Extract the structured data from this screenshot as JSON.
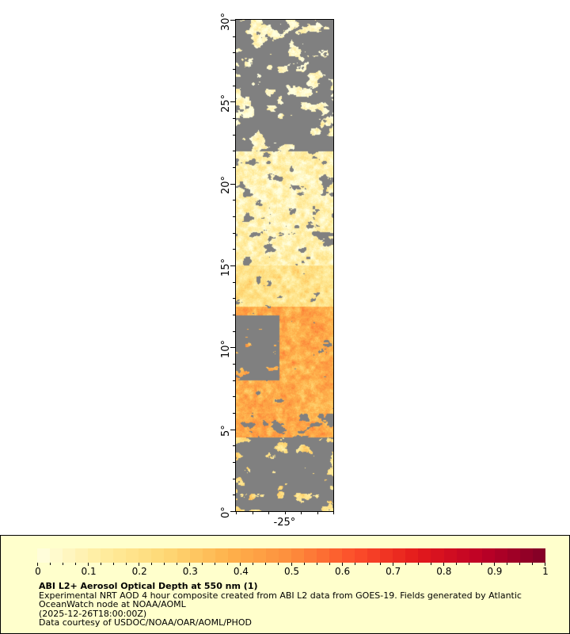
{
  "chart_data": {
    "type": "heatmap",
    "title": "ABI L2+ Aerosol Optical Depth at 550 nm (1)",
    "description_lines": [
      "Experimental NRT AOD 4 hour composite created from ABI L2 data from GOES-19. Fields generated by Atlantic",
      "OceanWatch node at NOAA/AOML",
      "(2025-12-26T18:00:00Z)",
      "Data courtesy of USDOC/NOAA/OAR/AOML/PHOD"
    ],
    "y_axis": {
      "range": [
        0,
        30
      ],
      "tick_labels": [
        "0°",
        "5°",
        "10°",
        "15°",
        "20°",
        "25°",
        "30°"
      ],
      "minor_step": 1
    },
    "x_axis": {
      "range": [
        -28,
        -22
      ],
      "tick_labels": [
        "-25°"
      ],
      "minor_step": 1
    },
    "colorbar": {
      "range": [
        0,
        1
      ],
      "tick_labels": [
        "0",
        "0.1",
        "0.2",
        "0.3",
        "0.4",
        "0.5",
        "0.6",
        "0.7",
        "0.8",
        "0.9",
        "1"
      ],
      "minor_step": 0.025,
      "colors": [
        "#ffffe0",
        "#ffeda0",
        "#fed976",
        "#feb24c",
        "#fd8d3c",
        "#fc4e2a",
        "#e31a1c",
        "#bd0026",
        "#800026"
      ]
    },
    "missing_color": "#808080",
    "grid": false
  }
}
